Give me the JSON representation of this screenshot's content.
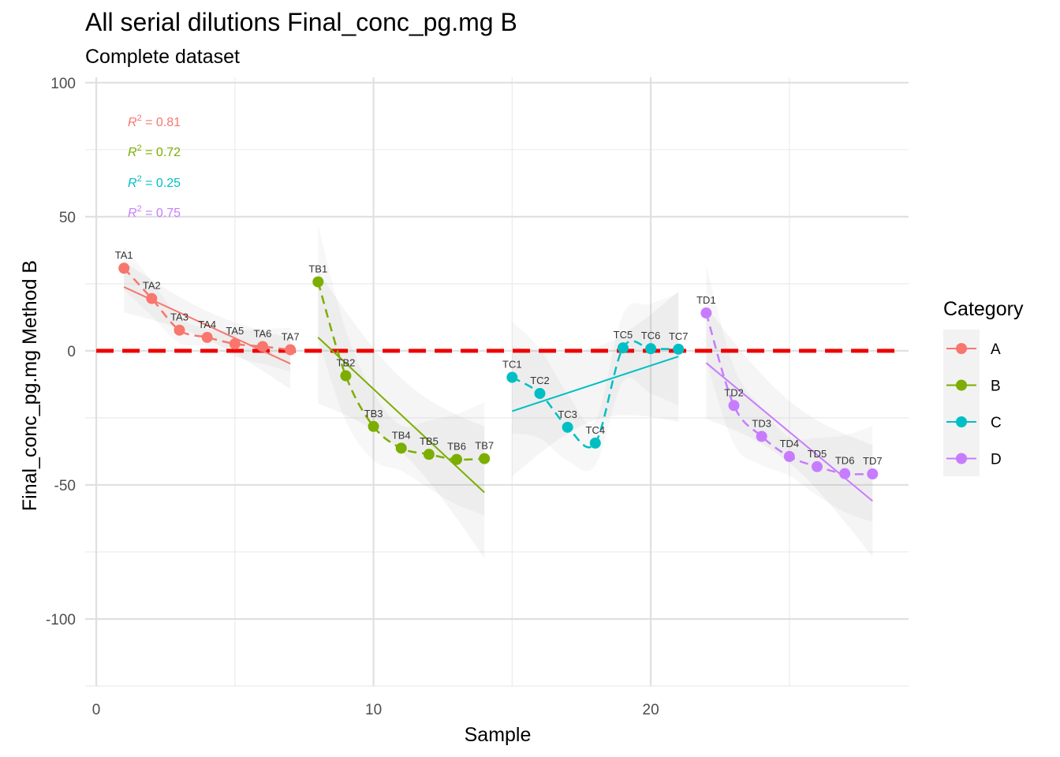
{
  "chart_data": {
    "type": "scatter",
    "title": "All serial dilutions Final_conc_pg.mg B",
    "subtitle": "Complete dataset",
    "xlabel": "Sample",
    "ylabel": "Final_conc_pg.mg Method B",
    "xlim": [
      -0.4,
      29.3
    ],
    "ylim": [
      -125,
      102
    ],
    "x_ticks": [
      0,
      10,
      20
    ],
    "y_ticks": [
      100,
      50,
      0,
      -50,
      -100
    ],
    "x_tick_labels": [
      "0",
      "10",
      "20"
    ],
    "y_tick_labels": [
      "100",
      "50",
      "0",
      "-50",
      "-100"
    ],
    "grid": true,
    "legend": {
      "title": "Category",
      "position": "right"
    },
    "reference_line": {
      "y": 0,
      "color": "#ee0000",
      "style": "dashed"
    },
    "series": [
      {
        "name": "A",
        "color": "#F8766D",
        "x": [
          1,
          2,
          3,
          4,
          5,
          6,
          7
        ],
        "y": [
          30.8,
          19.5,
          7.7,
          5.0,
          2.6,
          1.6,
          0.4
        ],
        "labels": [
          "TA1",
          "TA2",
          "TA3",
          "TA4",
          "TA5",
          "TA6",
          "TA7"
        ],
        "fit": {
          "x": [
            1,
            7
          ],
          "y": [
            23.8,
            -4.8
          ]
        },
        "r2": "0.81"
      },
      {
        "name": "B",
        "color": "#7CAE00",
        "x": [
          8,
          9,
          10,
          11,
          12,
          13,
          14
        ],
        "y": [
          25.7,
          -9.3,
          -28.2,
          -36.3,
          -38.6,
          -40.5,
          -40.2
        ],
        "labels": [
          "TB1",
          "TB2",
          "TB3",
          "TB4",
          "TB5",
          "TB6",
          "TB7"
        ],
        "fit": {
          "x": [
            8,
            14
          ],
          "y": [
            5.0,
            -52.8
          ]
        },
        "r2": "0.72"
      },
      {
        "name": "C",
        "color": "#00BFC4",
        "x": [
          15,
          16,
          17,
          18,
          19,
          20,
          21
        ],
        "y": [
          -9.9,
          -15.9,
          -28.5,
          -34.4,
          1.1,
          0.8,
          0.6
        ],
        "labels": [
          "TC1",
          "TC2",
          "TC3",
          "TC4",
          "TC5",
          "TC6",
          "TC7"
        ],
        "fit": {
          "x": [
            15,
            21
          ],
          "y": [
            -22.5,
            -2.1
          ]
        },
        "r2": "0.25"
      },
      {
        "name": "D",
        "color": "#C77CFF",
        "x": [
          22,
          23,
          24,
          25,
          26,
          27,
          28
        ],
        "y": [
          14.1,
          -20.4,
          -31.9,
          -39.4,
          -43.2,
          -45.8,
          -45.9
        ],
        "labels": [
          "TD1",
          "TD2",
          "TD3",
          "TD4",
          "TD5",
          "TD6",
          "TD7"
        ],
        "fit": {
          "x": [
            22,
            28
          ],
          "y": [
            -4.5,
            -56.0
          ]
        },
        "r2": "0.75"
      }
    ],
    "r2_prefix": "R",
    "r2_superscript": "2",
    "r2_equals": " = "
  }
}
